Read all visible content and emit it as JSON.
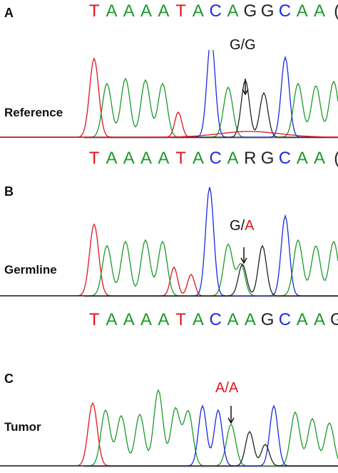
{
  "colors": {
    "T": "#e0161c",
    "A": "#1d9a2b",
    "C": "#1a2be0",
    "G": "#222222",
    "R": "#222222",
    "mut": "#e0161c"
  },
  "panels": [
    {
      "letter": "A",
      "label": "Reference",
      "genotype_left": "G/G",
      "genotype_sep": "",
      "genotype_right": "",
      "seq_top": [
        "T",
        "A",
        "A",
        "A",
        "A",
        "T",
        "A",
        "C",
        "A",
        "G",
        "G",
        "C",
        "A",
        "A",
        "("
      ],
      "seq_bottom": [
        "T",
        "A",
        "A",
        "A",
        "A",
        "T",
        "A",
        "C",
        "A",
        "R",
        "G",
        "C",
        "A",
        "A",
        "("
      ]
    },
    {
      "letter": "B",
      "label": "Germline",
      "genotype_left": "G",
      "genotype_sep": "/",
      "genotype_right": "A",
      "seq_bottom": [
        "T",
        "A",
        "A",
        "A",
        "A",
        "T",
        "A",
        "C",
        "A",
        "A",
        "G",
        "C",
        "A",
        "A",
        "G"
      ]
    },
    {
      "letter": "C",
      "label": "Tumor",
      "genotype_left": "A/A"
    }
  ]
}
